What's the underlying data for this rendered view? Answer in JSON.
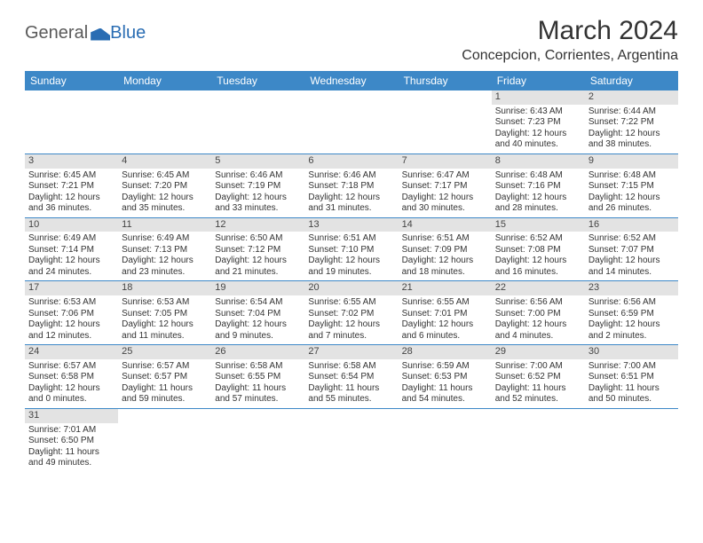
{
  "logo": {
    "general": "General",
    "blue": "Blue"
  },
  "title": "March 2024",
  "location": "Concepcion, Corrientes, Argentina",
  "colors": {
    "header_bg": "#3d88c7",
    "header_text": "#ffffff",
    "daynum_bg": "#e3e3e3",
    "text": "#333333",
    "logo_gray": "#5a5a5a",
    "logo_blue": "#2a6db3"
  },
  "weekdays": [
    "Sunday",
    "Monday",
    "Tuesday",
    "Wednesday",
    "Thursday",
    "Friday",
    "Saturday"
  ],
  "weeks": [
    [
      {
        "num": "",
        "lines": []
      },
      {
        "num": "",
        "lines": []
      },
      {
        "num": "",
        "lines": []
      },
      {
        "num": "",
        "lines": []
      },
      {
        "num": "",
        "lines": []
      },
      {
        "num": "1",
        "lines": [
          "Sunrise: 6:43 AM",
          "Sunset: 7:23 PM",
          "Daylight: 12 hours",
          "and 40 minutes."
        ]
      },
      {
        "num": "2",
        "lines": [
          "Sunrise: 6:44 AM",
          "Sunset: 7:22 PM",
          "Daylight: 12 hours",
          "and 38 minutes."
        ]
      }
    ],
    [
      {
        "num": "3",
        "lines": [
          "Sunrise: 6:45 AM",
          "Sunset: 7:21 PM",
          "Daylight: 12 hours",
          "and 36 minutes."
        ]
      },
      {
        "num": "4",
        "lines": [
          "Sunrise: 6:45 AM",
          "Sunset: 7:20 PM",
          "Daylight: 12 hours",
          "and 35 minutes."
        ]
      },
      {
        "num": "5",
        "lines": [
          "Sunrise: 6:46 AM",
          "Sunset: 7:19 PM",
          "Daylight: 12 hours",
          "and 33 minutes."
        ]
      },
      {
        "num": "6",
        "lines": [
          "Sunrise: 6:46 AM",
          "Sunset: 7:18 PM",
          "Daylight: 12 hours",
          "and 31 minutes."
        ]
      },
      {
        "num": "7",
        "lines": [
          "Sunrise: 6:47 AM",
          "Sunset: 7:17 PM",
          "Daylight: 12 hours",
          "and 30 minutes."
        ]
      },
      {
        "num": "8",
        "lines": [
          "Sunrise: 6:48 AM",
          "Sunset: 7:16 PM",
          "Daylight: 12 hours",
          "and 28 minutes."
        ]
      },
      {
        "num": "9",
        "lines": [
          "Sunrise: 6:48 AM",
          "Sunset: 7:15 PM",
          "Daylight: 12 hours",
          "and 26 minutes."
        ]
      }
    ],
    [
      {
        "num": "10",
        "lines": [
          "Sunrise: 6:49 AM",
          "Sunset: 7:14 PM",
          "Daylight: 12 hours",
          "and 24 minutes."
        ]
      },
      {
        "num": "11",
        "lines": [
          "Sunrise: 6:49 AM",
          "Sunset: 7:13 PM",
          "Daylight: 12 hours",
          "and 23 minutes."
        ]
      },
      {
        "num": "12",
        "lines": [
          "Sunrise: 6:50 AM",
          "Sunset: 7:12 PM",
          "Daylight: 12 hours",
          "and 21 minutes."
        ]
      },
      {
        "num": "13",
        "lines": [
          "Sunrise: 6:51 AM",
          "Sunset: 7:10 PM",
          "Daylight: 12 hours",
          "and 19 minutes."
        ]
      },
      {
        "num": "14",
        "lines": [
          "Sunrise: 6:51 AM",
          "Sunset: 7:09 PM",
          "Daylight: 12 hours",
          "and 18 minutes."
        ]
      },
      {
        "num": "15",
        "lines": [
          "Sunrise: 6:52 AM",
          "Sunset: 7:08 PM",
          "Daylight: 12 hours",
          "and 16 minutes."
        ]
      },
      {
        "num": "16",
        "lines": [
          "Sunrise: 6:52 AM",
          "Sunset: 7:07 PM",
          "Daylight: 12 hours",
          "and 14 minutes."
        ]
      }
    ],
    [
      {
        "num": "17",
        "lines": [
          "Sunrise: 6:53 AM",
          "Sunset: 7:06 PM",
          "Daylight: 12 hours",
          "and 12 minutes."
        ]
      },
      {
        "num": "18",
        "lines": [
          "Sunrise: 6:53 AM",
          "Sunset: 7:05 PM",
          "Daylight: 12 hours",
          "and 11 minutes."
        ]
      },
      {
        "num": "19",
        "lines": [
          "Sunrise: 6:54 AM",
          "Sunset: 7:04 PM",
          "Daylight: 12 hours",
          "and 9 minutes."
        ]
      },
      {
        "num": "20",
        "lines": [
          "Sunrise: 6:55 AM",
          "Sunset: 7:02 PM",
          "Daylight: 12 hours",
          "and 7 minutes."
        ]
      },
      {
        "num": "21",
        "lines": [
          "Sunrise: 6:55 AM",
          "Sunset: 7:01 PM",
          "Daylight: 12 hours",
          "and 6 minutes."
        ]
      },
      {
        "num": "22",
        "lines": [
          "Sunrise: 6:56 AM",
          "Sunset: 7:00 PM",
          "Daylight: 12 hours",
          "and 4 minutes."
        ]
      },
      {
        "num": "23",
        "lines": [
          "Sunrise: 6:56 AM",
          "Sunset: 6:59 PM",
          "Daylight: 12 hours",
          "and 2 minutes."
        ]
      }
    ],
    [
      {
        "num": "24",
        "lines": [
          "Sunrise: 6:57 AM",
          "Sunset: 6:58 PM",
          "Daylight: 12 hours",
          "and 0 minutes."
        ]
      },
      {
        "num": "25",
        "lines": [
          "Sunrise: 6:57 AM",
          "Sunset: 6:57 PM",
          "Daylight: 11 hours",
          "and 59 minutes."
        ]
      },
      {
        "num": "26",
        "lines": [
          "Sunrise: 6:58 AM",
          "Sunset: 6:55 PM",
          "Daylight: 11 hours",
          "and 57 minutes."
        ]
      },
      {
        "num": "27",
        "lines": [
          "Sunrise: 6:58 AM",
          "Sunset: 6:54 PM",
          "Daylight: 11 hours",
          "and 55 minutes."
        ]
      },
      {
        "num": "28",
        "lines": [
          "Sunrise: 6:59 AM",
          "Sunset: 6:53 PM",
          "Daylight: 11 hours",
          "and 54 minutes."
        ]
      },
      {
        "num": "29",
        "lines": [
          "Sunrise: 7:00 AM",
          "Sunset: 6:52 PM",
          "Daylight: 11 hours",
          "and 52 minutes."
        ]
      },
      {
        "num": "30",
        "lines": [
          "Sunrise: 7:00 AM",
          "Sunset: 6:51 PM",
          "Daylight: 11 hours",
          "and 50 minutes."
        ]
      }
    ],
    [
      {
        "num": "31",
        "lines": [
          "Sunrise: 7:01 AM",
          "Sunset: 6:50 PM",
          "Daylight: 11 hours",
          "and 49 minutes."
        ]
      },
      {
        "num": "",
        "lines": []
      },
      {
        "num": "",
        "lines": []
      },
      {
        "num": "",
        "lines": []
      },
      {
        "num": "",
        "lines": []
      },
      {
        "num": "",
        "lines": []
      },
      {
        "num": "",
        "lines": []
      }
    ]
  ]
}
